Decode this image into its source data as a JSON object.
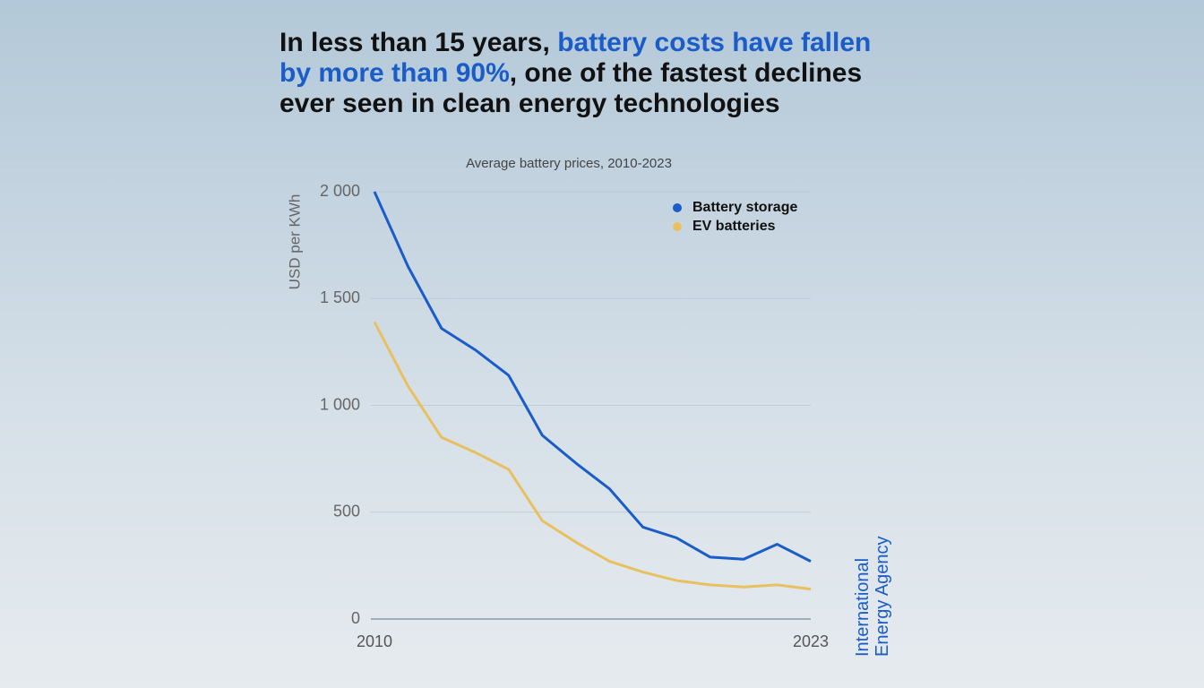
{
  "headline": [
    "In less than 15 years,",
    "battery costs have fallen by more than 90%",
    ", one of the fastest declines ever seen in clean energy technologies"
  ],
  "source": "International Energy Agency",
  "chart_data": {
    "type": "line",
    "title": "Average battery prices, 2010-2023",
    "y_label": "USD per KWh",
    "x": [
      2010,
      2011,
      2012,
      2013,
      2014,
      2015,
      2016,
      2017,
      2018,
      2019,
      2020,
      2021,
      2022,
      2023
    ],
    "series": [
      {
        "name": "Battery storage",
        "color": "#1a5cc8",
        "values": [
          2000,
          1650,
          1360,
          1260,
          1140,
          860,
          730,
          610,
          430,
          380,
          290,
          280,
          350,
          270
        ]
      },
      {
        "name": "EV batteries",
        "color": "#e8c060",
        "values": [
          1390,
          1090,
          850,
          780,
          700,
          460,
          360,
          270,
          220,
          180,
          160,
          150,
          160,
          140
        ]
      }
    ],
    "xlim": [
      2010,
      2023
    ],
    "xticks": [
      2010,
      2023
    ],
    "ylim": [
      0,
      2000
    ],
    "yticks": [
      0,
      500,
      {
        "value": 1000,
        "label": "1 000"
      },
      {
        "value": 1500,
        "label": "1 500"
      },
      {
        "value": 2000,
        "label": "2 000"
      }
    ],
    "grid": true,
    "legend": "top-right"
  }
}
